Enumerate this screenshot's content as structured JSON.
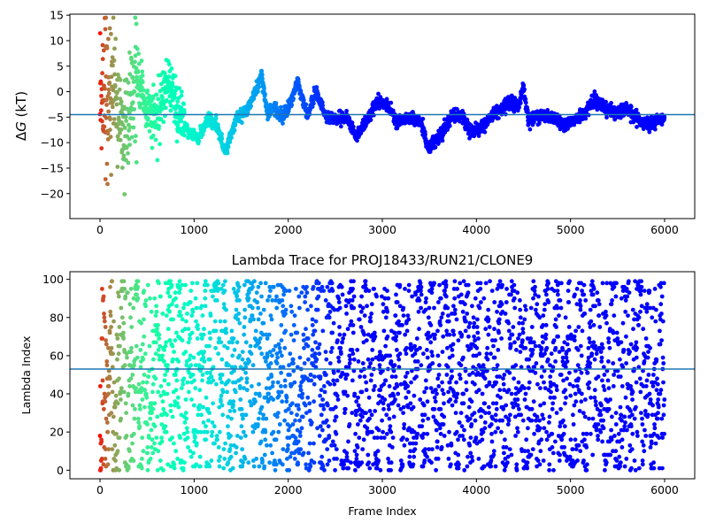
{
  "colors": {
    "hline": "#1f77b4",
    "colormap": "rainbow"
  },
  "chart_data": [
    {
      "type": "scatter",
      "title": "",
      "xlabel": "",
      "ylabel": "ΔG (kT)",
      "ylabel_parts": {
        "delta": "Δ",
        "italic": "G",
        "rest": " (kT)"
      },
      "xlim": [
        -320,
        6320
      ],
      "ylim": [
        -24.9,
        15.2
      ],
      "xticks": [
        0,
        1000,
        2000,
        3000,
        4000,
        5000,
        6000
      ],
      "yticks": [
        -20,
        -15,
        -10,
        -5,
        0,
        5,
        10,
        15
      ],
      "hline": -4.5,
      "grid": false,
      "point_color_by": "x",
      "n_points": 6000,
      "trace_keypoints": [
        {
          "x": 0,
          "y": 0
        },
        {
          "x": 150,
          "y": 2
        },
        {
          "x": 250,
          "y": -10
        },
        {
          "x": 380,
          "y": 4
        },
        {
          "x": 500,
          "y": -4
        },
        {
          "x": 600,
          "y": -5
        },
        {
          "x": 720,
          "y": 2
        },
        {
          "x": 820,
          "y": -4
        },
        {
          "x": 950,
          "y": -8
        },
        {
          "x": 1050,
          "y": -9
        },
        {
          "x": 1150,
          "y": -5
        },
        {
          "x": 1250,
          "y": -7
        },
        {
          "x": 1330,
          "y": -12
        },
        {
          "x": 1450,
          "y": -5
        },
        {
          "x": 1550,
          "y": -4
        },
        {
          "x": 1650,
          "y": 0
        },
        {
          "x": 1720,
          "y": 3
        },
        {
          "x": 1780,
          "y": -4.5
        },
        {
          "x": 1850,
          "y": -3
        },
        {
          "x": 1950,
          "y": -5
        },
        {
          "x": 2050,
          "y": -1
        },
        {
          "x": 2100,
          "y": 2
        },
        {
          "x": 2200,
          "y": -4.5
        },
        {
          "x": 2300,
          "y": 0
        },
        {
          "x": 2400,
          "y": -5
        },
        {
          "x": 2500,
          "y": -5.5
        },
        {
          "x": 2620,
          "y": -5
        },
        {
          "x": 2720,
          "y": -9
        },
        {
          "x": 2850,
          "y": -5
        },
        {
          "x": 2950,
          "y": -2
        },
        {
          "x": 3050,
          "y": -2.5
        },
        {
          "x": 3150,
          "y": -6
        },
        {
          "x": 3300,
          "y": -5
        },
        {
          "x": 3420,
          "y": -6
        },
        {
          "x": 3480,
          "y": -11
        },
        {
          "x": 3600,
          "y": -9
        },
        {
          "x": 3750,
          "y": -4.5
        },
        {
          "x": 3850,
          "y": -5
        },
        {
          "x": 3950,
          "y": -8
        },
        {
          "x": 4050,
          "y": -7
        },
        {
          "x": 4150,
          "y": -5
        },
        {
          "x": 4300,
          "y": -2.5
        },
        {
          "x": 4450,
          "y": -2.5
        },
        {
          "x": 4500,
          "y": 1
        },
        {
          "x": 4550,
          "y": -5.5
        },
        {
          "x": 4700,
          "y": -4.5
        },
        {
          "x": 4800,
          "y": -5
        },
        {
          "x": 4950,
          "y": -6.5
        },
        {
          "x": 5050,
          "y": -5.5
        },
        {
          "x": 5150,
          "y": -4.5
        },
        {
          "x": 5250,
          "y": -1.5
        },
        {
          "x": 5350,
          "y": -3
        },
        {
          "x": 5500,
          "y": -4
        },
        {
          "x": 5600,
          "y": -3.5
        },
        {
          "x": 5750,
          "y": -6
        },
        {
          "x": 5850,
          "y": -6.5
        },
        {
          "x": 6000,
          "y": -5
        }
      ]
    },
    {
      "type": "scatter",
      "title": "Lambda Trace for PROJ18433/RUN21/CLONE9",
      "xlabel": "Frame Index",
      "ylabel": "Lambda Index",
      "xlim": [
        -320,
        6320
      ],
      "ylim": [
        -4.5,
        104
      ],
      "xticks": [
        0,
        1000,
        2000,
        3000,
        4000,
        5000,
        6000
      ],
      "yticks": [
        0,
        20,
        40,
        60,
        80,
        100
      ],
      "hline": 53,
      "grid": false,
      "point_color_by": "x",
      "n_points": 6000,
      "value_range": [
        0,
        99
      ]
    }
  ]
}
